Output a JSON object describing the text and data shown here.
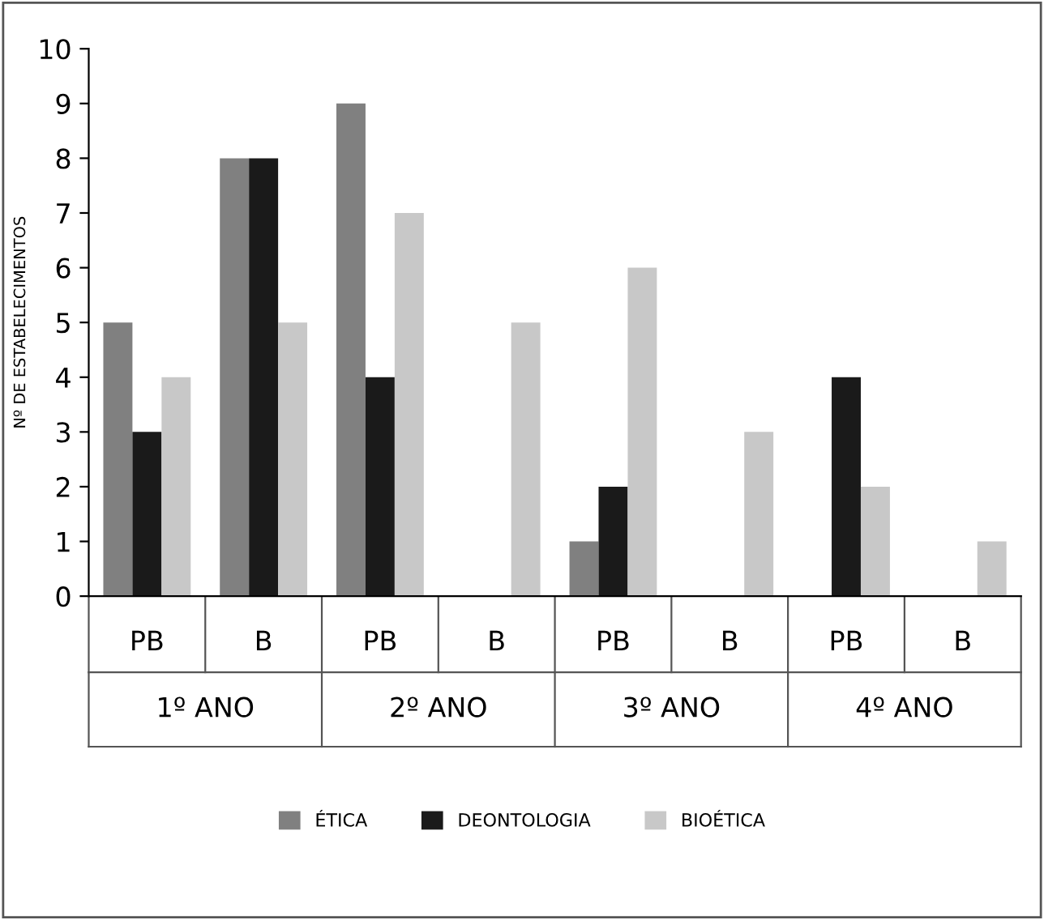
{
  "chart_data": {
    "type": "bar",
    "ylabel": "Nº DE ESTABELECIMENTOS",
    "categories": [
      "PB",
      "B",
      "PB",
      "B",
      "PB",
      "B",
      "PB",
      "B"
    ],
    "series": [
      {
        "name": "ÉTICA",
        "color": "#808080",
        "values": [
          5,
          8,
          9,
          0,
          1,
          0,
          0,
          0
        ]
      },
      {
        "name": "DEONTOLOGIA",
        "color": "#1a1a1a",
        "values": [
          3,
          8,
          4,
          0,
          2,
          0,
          4,
          0
        ]
      },
      {
        "name": "BIOÉTICA",
        "color": "#c8c8c8",
        "values": [
          4,
          5,
          7,
          5,
          6,
          3,
          2,
          1
        ]
      }
    ],
    "annotations": [
      "1º ANO",
      "2º ANO",
      "3º ANO",
      "4º ANO"
    ],
    "ylim": [
      0,
      10
    ],
    "yticks": [
      0,
      1,
      2,
      3,
      4,
      5,
      6,
      7,
      8,
      9,
      10
    ],
    "grid": false,
    "legend": "bottom"
  }
}
